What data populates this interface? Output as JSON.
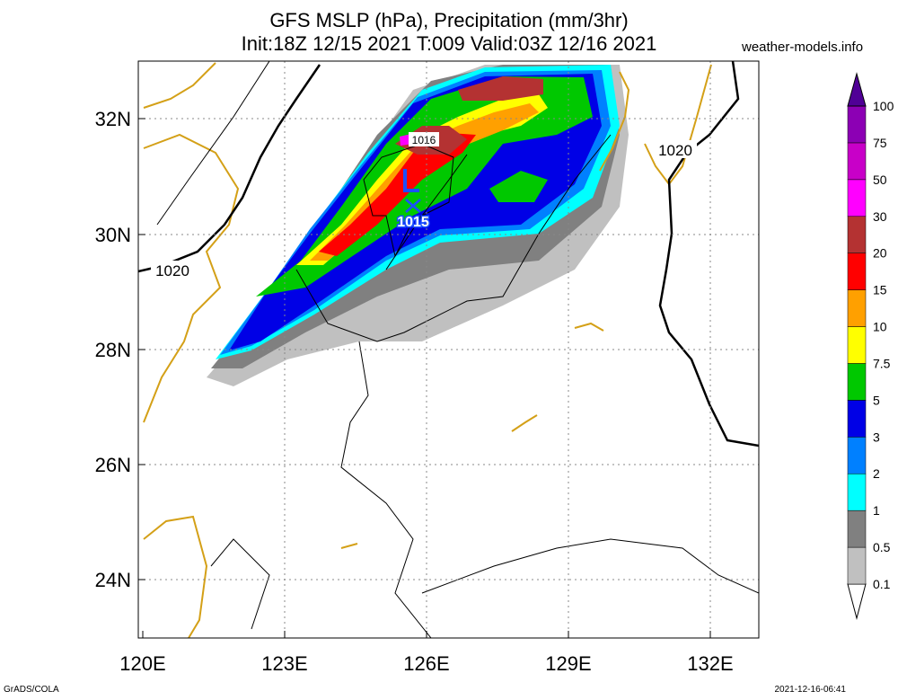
{
  "header": {
    "title_line1": "GFS MSLP (hPa), Precipitation (mm/3hr)",
    "title_line2": "Init:18Z 12/15 2021 T:009 Valid:03Z 12/16 2021",
    "brand": "weather-models.info"
  },
  "footer": {
    "left": "GrADS/COLA",
    "right": "2021-12-16-06:41"
  },
  "map": {
    "lon_ticks": [
      "120E",
      "123E",
      "126E",
      "129E",
      "132E"
    ],
    "lat_ticks": [
      "32N",
      "30N",
      "28N",
      "26N",
      "24N"
    ],
    "pressure_labels": [
      "1020",
      "1020",
      "1016"
    ],
    "low_center": {
      "symbol": "L",
      "value": "1015"
    }
  },
  "legend": {
    "levels": [
      "0.1",
      "0.5",
      "1",
      "2",
      "3",
      "5",
      "7.5",
      "10",
      "15",
      "20",
      "30",
      "50",
      "75",
      "100"
    ],
    "colors": [
      "#ffffff",
      "#c0c0c0",
      "#808080",
      "#00ffff",
      "#0080ff",
      "#0000e6",
      "#00c800",
      "#ffff00",
      "#ffa000",
      "#ff0000",
      "#b43232",
      "#ff00ff",
      "#c800c8",
      "#8c00b4",
      "#500096"
    ]
  }
}
